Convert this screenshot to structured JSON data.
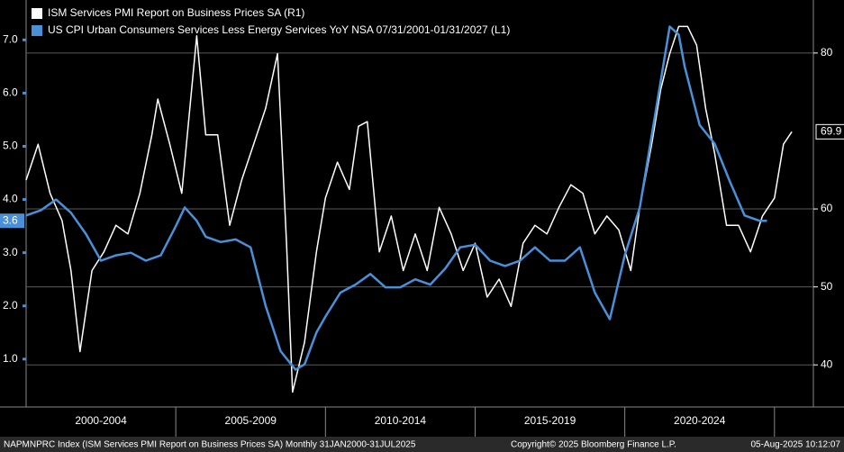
{
  "chart_data": {
    "type": "line",
    "legend": "top-left",
    "grid": true,
    "background": "#000000",
    "xlim": [
      2000,
      2026.3
    ],
    "xticks": [
      {
        "value": 2002.5,
        "label": "2000-2004"
      },
      {
        "value": 2007.5,
        "label": "2005-2009"
      },
      {
        "value": 2012.5,
        "label": "2010-2014"
      },
      {
        "value": 2017.5,
        "label": "2015-2019"
      },
      {
        "value": 2022.5,
        "label": "2020-2024"
      }
    ],
    "ylim": [
      0.1,
      7.75
    ],
    "yticks": [
      {
        "value": 1,
        "label": "1.0"
      },
      {
        "value": 2,
        "label": "2.0"
      },
      {
        "value": 3,
        "label": "3.0"
      },
      {
        "value": 4,
        "label": "4.0"
      },
      {
        "value": 5,
        "label": "5.0"
      },
      {
        "value": 6,
        "label": "6.0"
      },
      {
        "value": 7,
        "label": "7.0"
      }
    ],
    "y2lim": [
      34.6,
      86.8
    ],
    "y2ticks": [
      40,
      50,
      60,
      80
    ],
    "series": [
      {
        "name": "ISM Services PMI Report on Business Prices SA  (R1)",
        "color": "#ffffff",
        "axis": "y2",
        "end_value": 69.9,
        "x": [
          2000,
          2000.4,
          2000.8,
          2001.2,
          2001.5,
          2001.8,
          2002.2,
          2002.6,
          2003,
          2003.4,
          2003.8,
          2004.2,
          2004.4,
          2004.8,
          2005.2,
          2005.7,
          2006,
          2006.4,
          2006.8,
          2007.2,
          2007.6,
          2008,
          2008.4,
          2008.7,
          2008.9,
          2009.3,
          2009.7,
          2010,
          2010.4,
          2010.8,
          2011.1,
          2011.4,
          2011.8,
          2012.2,
          2012.6,
          2013,
          2013.4,
          2013.8,
          2014.2,
          2014.6,
          2015,
          2015.4,
          2015.8,
          2016.2,
          2016.6,
          2017,
          2017.4,
          2017.8,
          2018.2,
          2018.6,
          2019,
          2019.4,
          2019.8,
          2020.2,
          2020.5,
          2020.9,
          2021.2,
          2021.5,
          2021.8,
          2022.1,
          2022.4,
          2022.7,
          2023,
          2023.4,
          2023.8,
          2024.2,
          2024.6,
          2025,
          2025.3,
          2025.58
        ],
        "values": [
          63.7,
          68.3,
          62,
          58.5,
          52.1,
          41.7,
          52.1,
          54.5,
          57.9,
          56.8,
          62,
          69.5,
          74.1,
          68.3,
          62,
          82.2,
          69.5,
          69.5,
          57.9,
          63.7,
          68.3,
          72.9,
          79.9,
          55.6,
          36.5,
          42.9,
          54.5,
          61.4,
          66,
          62.5,
          70.6,
          71.2,
          54.5,
          59.1,
          52.1,
          56.8,
          52.1,
          60.2,
          56.8,
          52.1,
          55.6,
          48.7,
          51,
          47.5,
          55.6,
          57.9,
          56.8,
          60.2,
          63.1,
          62,
          56.8,
          59.1,
          57.3,
          52.1,
          60.2,
          68.3,
          75.3,
          79.9,
          83.4,
          83.4,
          81,
          72.9,
          67.2,
          57.9,
          57.9,
          54.5,
          59.1,
          61.4,
          68.3,
          69.9
        ]
      },
      {
        "name": "US CPI Urban Consumers Services Less Energy Services YoY NSA 07/31/2001-01/31/2027 (L1)",
        "color": "#4a90d9",
        "axis": "y",
        "end_value": 3.6,
        "x": [
          2000,
          2000.5,
          2001,
          2001.5,
          2002,
          2002.5,
          2003,
          2003.5,
          2004,
          2004.5,
          2005,
          2005.3,
          2005.7,
          2006,
          2006.5,
          2007,
          2007.5,
          2008,
          2008.5,
          2009,
          2009.3,
          2009.7,
          2010,
          2010.5,
          2011,
          2011.5,
          2012,
          2012.5,
          2013,
          2013.5,
          2014,
          2014.5,
          2015,
          2015.5,
          2016,
          2016.5,
          2017,
          2017.5,
          2018,
          2018.5,
          2019,
          2019.5,
          2020,
          2020.5,
          2021,
          2021.5,
          2021.8,
          2022,
          2022.5,
          2023,
          2023.5,
          2024,
          2024.5,
          2024.75
        ],
        "values": [
          3.7,
          3.8,
          4.0,
          3.75,
          3.35,
          2.85,
          2.95,
          3.0,
          2.85,
          2.95,
          3.5,
          3.85,
          3.6,
          3.3,
          3.2,
          3.25,
          3.1,
          2.0,
          1.15,
          0.8,
          0.9,
          1.5,
          1.8,
          2.25,
          2.4,
          2.6,
          2.35,
          2.35,
          2.5,
          2.4,
          2.7,
          3.1,
          3.15,
          2.85,
          2.75,
          2.85,
          3.1,
          2.85,
          2.85,
          3.1,
          2.25,
          1.75,
          2.95,
          3.85,
          5.55,
          7.25,
          7.1,
          6.5,
          5.4,
          5.05,
          4.35,
          3.7,
          3.6,
          3.6
        ]
      }
    ],
    "footer": {
      "source": "NAPMNPRC Index (ISM Services PMI Report on Business Prices SA)  Monthly 31JAN2000-31JUL2025",
      "copyright": "Copyright© 2025 Bloomberg Finance L.P.",
      "timestamp": "05-Aug-2025 10:12:07"
    }
  }
}
